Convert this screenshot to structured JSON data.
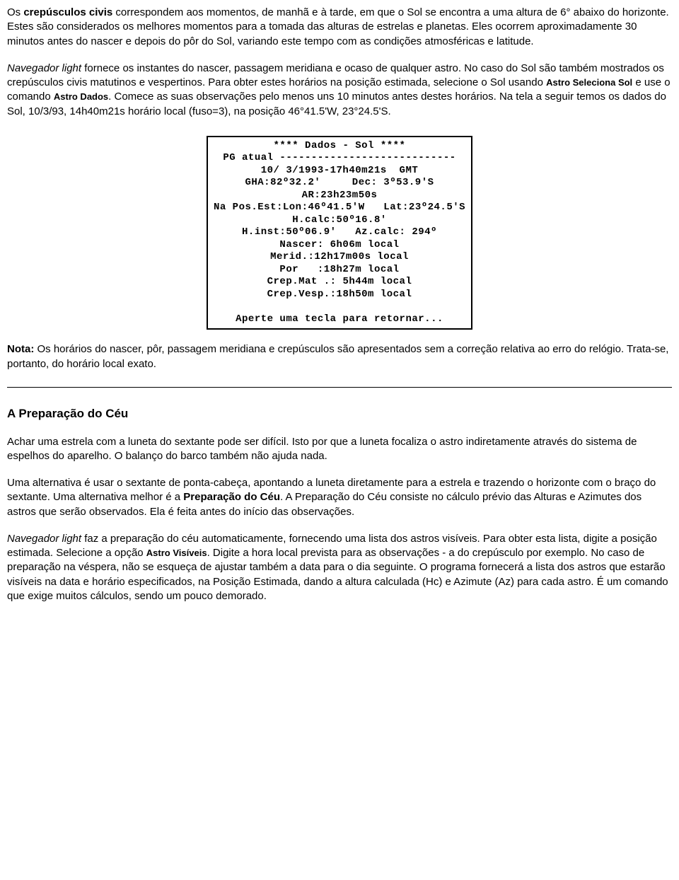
{
  "para1": {
    "t1": "Os ",
    "t2": "crepúsculos civis",
    "t3": " correspondem aos momentos, de manhã e à tarde, em que o Sol se encontra a uma altura de 6° abaixo do horizonte. Estes são considerados os melhores momentos para a tomada das alturas de estrelas e planetas. Eles ocorrem aproximadamente 30 minutos antes do nascer e depois do pôr do Sol, variando este tempo com as condições atmosféricas e latitude."
  },
  "para2": {
    "t1": "Navegador light",
    "t2": " fornece os instantes do nascer, passagem meridiana e ocaso de qualquer astro. No caso do Sol são também mostrados os crepúsculos civis matutinos e vespertinos. Para obter estes horários na posição estimada, selecione o Sol usando ",
    "t3": "Astro Seleciona Sol",
    "t4": " e use o comando ",
    "t5": "Astro Dados",
    "t6": ". Comece as suas observações pelo menos uns 10 minutos antes destes horários. Na tela a seguir temos os dados do Sol, 10/3/93, 14h40m21s horário local (fuso=3), na posição 46°41.5'W, 23°24.5'S."
  },
  "terminal": {
    "l1": "**** Dados - Sol ****",
    "l2": "PG atual ----------------------------",
    "l3": "10/ 3/1993-17h40m21s  GMT",
    "l4": "GHA:82º32.2'     Dec: 3º53.9'S",
    "l5": "AR:23h23m50s",
    "l6": "Na Pos.Est:Lon:46º41.5'W   Lat:23º24.5'S",
    "l7": "H.calc:50º16.8'",
    "l8": "H.inst:50º06.9'   Az.calc: 294º",
    "l9": "Nascer: 6h06m local",
    "l10": "Merid.:12h17m00s local",
    "l11": "Por   :18h27m local",
    "l12": "Crep.Mat .: 5h44m local",
    "l13": "Crep.Vesp.:18h50m local",
    "l14": "",
    "l15": "Aperte uma tecla para retornar..."
  },
  "nota": {
    "label": "Nota:",
    "text": " Os horários do nascer, pôr, passagem meridiana e crepúsculos são apresentados sem a correção relativa ao erro do relógio. Trata-se, portanto, do horário local exato."
  },
  "heading2": "A Preparação do Céu",
  "para3": "Achar uma estrela com a luneta do sextante pode ser difícil. Isto por que a luneta focaliza o astro indiretamente através do sistema de espelhos do aparelho. O balanço do barco também não ajuda nada.",
  "para4": {
    "t1": "Uma alternativa é usar o sextante de ponta-cabeça, apontando a luneta diretamente para a estrela e trazendo o horizonte com o braço do sextante. Uma alternativa melhor é a ",
    "t2": "Preparação do Céu",
    "t3": ". A Preparação do Céu consiste no cálculo prévio das Alturas e Azimutes dos astros que serão observados. Ela é feita antes do início das observações."
  },
  "para5": {
    "t1": "Navegador light",
    "t2": " faz a preparação do céu automaticamente, fornecendo uma lista dos astros visíveis. Para obter esta lista, digite a posição estimada. Selecione a opção ",
    "t3": "Astro Visíveis",
    "t4": ". Digite a hora local prevista para as observações - a do crepúsculo por exemplo. No caso de preparação na véspera, não se esqueça de ajustar também a data para o dia seguinte. O programa fornecerá a lista dos astros que estarão visíveis na data e horário especificados, na Posição Estimada, dando a altura calculada (Hc) e Azimute (Az) para cada astro. É um comando que exige muitos cálculos, sendo um pouco demorado."
  }
}
